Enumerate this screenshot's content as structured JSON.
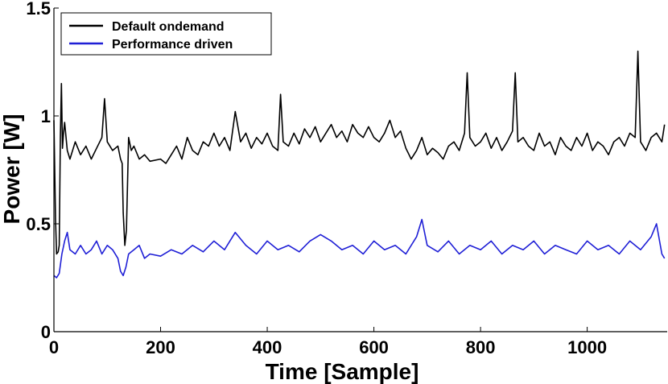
{
  "chart_data": {
    "type": "line",
    "title": "",
    "xlabel": "Time [Sample]",
    "ylabel": "Power [W]",
    "xlim": [
      0,
      1150
    ],
    "ylim": [
      0,
      1.5
    ],
    "xticks": [
      0,
      200,
      400,
      600,
      800,
      1000
    ],
    "xtick_labels": [
      "0",
      "200",
      "400",
      "600",
      "800",
      "1000"
    ],
    "yticks": [
      0,
      0.5,
      1,
      1.5
    ],
    "ytick_labels": [
      "0",
      "0.5",
      "1",
      "1.5"
    ],
    "grid": false,
    "legend_position": "top-left",
    "series": [
      {
        "name": "Default ondemand",
        "color": "#000000",
        "x": [
          0,
          3,
          5,
          8,
          10,
          12,
          14,
          16,
          18,
          20,
          25,
          30,
          40,
          50,
          60,
          70,
          80,
          90,
          95,
          100,
          110,
          120,
          125,
          128,
          130,
          133,
          136,
          140,
          145,
          150,
          160,
          170,
          180,
          200,
          210,
          220,
          230,
          240,
          250,
          260,
          270,
          280,
          290,
          300,
          310,
          320,
          330,
          340,
          350,
          360,
          370,
          380,
          390,
          400,
          410,
          420,
          425,
          430,
          440,
          450,
          460,
          470,
          480,
          490,
          500,
          510,
          520,
          530,
          540,
          550,
          560,
          570,
          580,
          590,
          600,
          610,
          620,
          630,
          640,
          650,
          660,
          670,
          680,
          690,
          700,
          710,
          720,
          730,
          740,
          750,
          760,
          770,
          775,
          780,
          790,
          800,
          810,
          820,
          830,
          840,
          850,
          860,
          865,
          870,
          880,
          890,
          900,
          910,
          920,
          930,
          940,
          950,
          960,
          970,
          980,
          990,
          1000,
          1010,
          1020,
          1030,
          1040,
          1050,
          1060,
          1070,
          1080,
          1090,
          1095,
          1100,
          1110,
          1120,
          1130,
          1140,
          1145
        ],
        "y": [
          0.98,
          0.52,
          0.36,
          0.37,
          0.4,
          0.9,
          1.15,
          0.85,
          0.92,
          0.97,
          0.84,
          0.8,
          0.88,
          0.82,
          0.86,
          0.8,
          0.85,
          0.9,
          1.08,
          0.88,
          0.84,
          0.86,
          0.8,
          0.78,
          0.55,
          0.4,
          0.47,
          0.9,
          0.84,
          0.86,
          0.8,
          0.82,
          0.79,
          0.8,
          0.78,
          0.82,
          0.86,
          0.8,
          0.9,
          0.84,
          0.82,
          0.88,
          0.86,
          0.92,
          0.86,
          0.9,
          0.84,
          1.02,
          0.88,
          0.92,
          0.85,
          0.9,
          0.87,
          0.92,
          0.86,
          0.84,
          1.1,
          0.88,
          0.86,
          0.92,
          0.87,
          0.94,
          0.9,
          0.95,
          0.88,
          0.92,
          0.96,
          0.9,
          0.93,
          0.88,
          0.96,
          0.92,
          0.9,
          0.95,
          0.9,
          0.88,
          0.92,
          0.98,
          0.9,
          0.93,
          0.85,
          0.8,
          0.84,
          0.9,
          0.82,
          0.85,
          0.83,
          0.8,
          0.86,
          0.88,
          0.84,
          0.92,
          1.2,
          0.9,
          0.86,
          0.88,
          0.92,
          0.85,
          0.9,
          0.84,
          0.88,
          0.93,
          1.2,
          0.88,
          0.9,
          0.86,
          0.84,
          0.92,
          0.86,
          0.88,
          0.82,
          0.9,
          0.86,
          0.84,
          0.9,
          0.86,
          0.92,
          0.84,
          0.88,
          0.86,
          0.82,
          0.88,
          0.9,
          0.86,
          0.92,
          0.9,
          1.3,
          0.88,
          0.84,
          0.9,
          0.92,
          0.88,
          0.96
        ]
      },
      {
        "name": "Performance driven",
        "color": "#1f1fd6",
        "x": [
          0,
          5,
          10,
          15,
          20,
          25,
          30,
          40,
          50,
          60,
          70,
          80,
          90,
          100,
          110,
          120,
          125,
          130,
          135,
          140,
          150,
          160,
          170,
          180,
          200,
          220,
          240,
          260,
          280,
          300,
          320,
          340,
          360,
          380,
          400,
          420,
          440,
          460,
          480,
          500,
          520,
          540,
          560,
          580,
          600,
          620,
          640,
          660,
          680,
          690,
          700,
          720,
          740,
          760,
          780,
          800,
          820,
          840,
          860,
          880,
          900,
          920,
          940,
          960,
          980,
          1000,
          1020,
          1040,
          1060,
          1080,
          1100,
          1120,
          1130,
          1140,
          1145
        ],
        "y": [
          0.26,
          0.25,
          0.27,
          0.36,
          0.42,
          0.46,
          0.38,
          0.36,
          0.4,
          0.36,
          0.38,
          0.42,
          0.36,
          0.4,
          0.38,
          0.34,
          0.28,
          0.26,
          0.3,
          0.36,
          0.38,
          0.4,
          0.34,
          0.36,
          0.35,
          0.38,
          0.36,
          0.4,
          0.37,
          0.42,
          0.38,
          0.46,
          0.4,
          0.36,
          0.42,
          0.38,
          0.4,
          0.37,
          0.42,
          0.45,
          0.42,
          0.38,
          0.4,
          0.36,
          0.42,
          0.38,
          0.4,
          0.36,
          0.44,
          0.52,
          0.4,
          0.37,
          0.42,
          0.36,
          0.4,
          0.38,
          0.42,
          0.36,
          0.4,
          0.38,
          0.42,
          0.36,
          0.4,
          0.38,
          0.36,
          0.42,
          0.38,
          0.4,
          0.36,
          0.42,
          0.38,
          0.44,
          0.5,
          0.36,
          0.34
        ]
      }
    ]
  }
}
